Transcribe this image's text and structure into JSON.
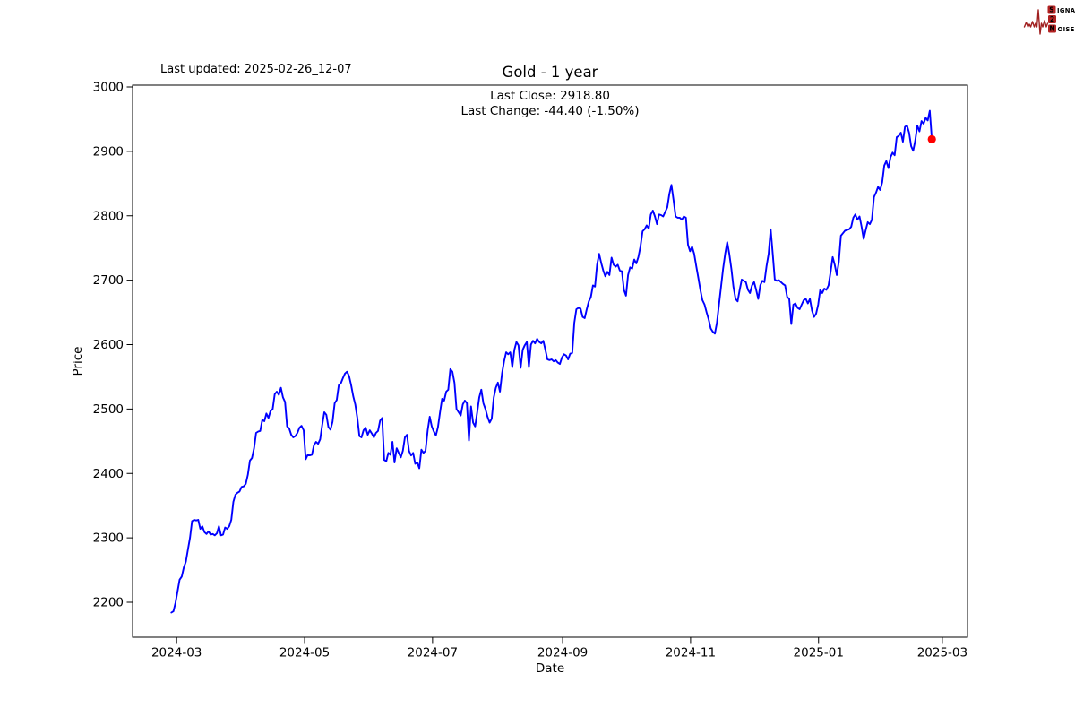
{
  "page": {
    "background": "#ffffff"
  },
  "header": {
    "last_updated": "Last updated: 2025-02-26_12-07",
    "title": "Gold - 1 year",
    "subtitle_line1": "Last Close: 2918.80",
    "subtitle_line2": "Last Change: -44.40 (-1.50%)"
  },
  "logo": {
    "s": "S",
    "ignal": "IGNAL",
    "two": "2",
    "n": "N",
    "oise": "OISE",
    "accent_color": "#b22222",
    "wave_color": "#a02020",
    "text_color": "#1a1a1a",
    "letter_color": "#ffffff"
  },
  "chart_data": {
    "type": "line",
    "title": "Gold - 1 year",
    "xlabel": "Date",
    "ylabel": "Price",
    "series_name": "Gold",
    "line_color": "#0000ff",
    "last_point_color": "#ff0000",
    "last_close": 2918.8,
    "last_change": -44.4,
    "last_change_pct": -1.5,
    "grid": false,
    "legend": "none",
    "ylim": [
      2146,
      3003
    ],
    "y_tick_values": [
      2200,
      2300,
      2400,
      2500,
      2600,
      2700,
      2800,
      2900,
      3000
    ],
    "x_tick_labels": [
      "2024-03",
      "2024-05",
      "2024-07",
      "2024-09",
      "2024-11",
      "2025-01",
      "2025-03"
    ],
    "xlim_dates": [
      "2024-02-09",
      "2025-03-13"
    ],
    "date_start": "2024-02-27",
    "date_end": "2025-02-25",
    "prices": [
      2184,
      2186,
      2199,
      2217,
      2235,
      2240,
      2254,
      2263,
      2282,
      2300,
      2326,
      2328,
      2327,
      2328,
      2314,
      2318,
      2309,
      2306,
      2310,
      2305,
      2306,
      2304,
      2307,
      2318,
      2304,
      2305,
      2316,
      2314,
      2318,
      2328,
      2356,
      2367,
      2370,
      2372,
      2379,
      2380,
      2384,
      2398,
      2420,
      2424,
      2439,
      2463,
      2465,
      2466,
      2483,
      2481,
      2493,
      2486,
      2497,
      2500,
      2523,
      2527,
      2522,
      2533,
      2518,
      2511,
      2473,
      2470,
      2460,
      2456,
      2458,
      2463,
      2471,
      2474,
      2467,
      2422,
      2429,
      2428,
      2429,
      2444,
      2449,
      2446,
      2453,
      2475,
      2495,
      2491,
      2472,
      2468,
      2480,
      2509,
      2514,
      2537,
      2540,
      2548,
      2555,
      2558,
      2551,
      2537,
      2520,
      2507,
      2486,
      2458,
      2456,
      2467,
      2471,
      2460,
      2467,
      2462,
      2456,
      2463,
      2466,
      2482,
      2486,
      2421,
      2419,
      2432,
      2429,
      2449,
      2417,
      2439,
      2432,
      2425,
      2435,
      2456,
      2460,
      2435,
      2428,
      2432,
      2415,
      2417,
      2408,
      2437,
      2432,
      2435,
      2467,
      2488,
      2473,
      2465,
      2459,
      2472,
      2495,
      2516,
      2513,
      2527,
      2530,
      2562,
      2558,
      2541,
      2500,
      2495,
      2490,
      2507,
      2513,
      2509,
      2451,
      2504,
      2479,
      2473,
      2495,
      2518,
      2530,
      2509,
      2500,
      2488,
      2479,
      2485,
      2518,
      2533,
      2541,
      2527,
      2555,
      2574,
      2588,
      2585,
      2588,
      2565,
      2592,
      2604,
      2599,
      2564,
      2592,
      2599,
      2604,
      2565,
      2600,
      2606,
      2602,
      2609,
      2604,
      2602,
      2606,
      2592,
      2577,
      2576,
      2577,
      2574,
      2576,
      2572,
      2570,
      2580,
      2585,
      2583,
      2577,
      2586,
      2587,
      2634,
      2655,
      2657,
      2656,
      2643,
      2641,
      2655,
      2667,
      2674,
      2692,
      2690,
      2724,
      2741,
      2727,
      2715,
      2706,
      2713,
      2708,
      2735,
      2724,
      2721,
      2724,
      2715,
      2714,
      2685,
      2676,
      2708,
      2720,
      2718,
      2732,
      2726,
      2736,
      2752,
      2776,
      2779,
      2785,
      2780,
      2802,
      2808,
      2799,
      2787,
      2802,
      2801,
      2799,
      2806,
      2813,
      2834,
      2848,
      2824,
      2799,
      2797,
      2797,
      2794,
      2799,
      2797,
      2755,
      2745,
      2752,
      2741,
      2722,
      2704,
      2685,
      2669,
      2662,
      2650,
      2639,
      2625,
      2620,
      2617,
      2634,
      2662,
      2690,
      2718,
      2741,
      2759,
      2741,
      2718,
      2690,
      2671,
      2667,
      2685,
      2701,
      2699,
      2697,
      2685,
      2680,
      2692,
      2697,
      2685,
      2671,
      2692,
      2699,
      2697,
      2722,
      2741,
      2779,
      2741,
      2701,
      2699,
      2700,
      2697,
      2694,
      2692,
      2674,
      2671,
      2632,
      2662,
      2664,
      2657,
      2655,
      2662,
      2669,
      2671,
      2664,
      2671,
      2653,
      2643,
      2648,
      2662,
      2685,
      2680,
      2687,
      2685,
      2692,
      2713,
      2736,
      2724,
      2708,
      2729,
      2769,
      2773,
      2777,
      2778,
      2779,
      2783,
      2797,
      2802,
      2794,
      2799,
      2783,
      2764,
      2778,
      2790,
      2787,
      2794,
      2829,
      2836,
      2845,
      2840,
      2852,
      2878,
      2885,
      2874,
      2891,
      2898,
      2894,
      2922,
      2924,
      2929,
      2915,
      2938,
      2940,
      2929,
      2908,
      2901,
      2917,
      2940,
      2931,
      2947,
      2943,
      2952,
      2948,
      2963,
      2918.8
    ]
  },
  "axis": {
    "total_days": 398,
    "x_ticks": [
      {
        "label": "2024-03",
        "day": 21
      },
      {
        "label": "2024-05",
        "day": 82
      },
      {
        "label": "2024-07",
        "day": 143
      },
      {
        "label": "2024-09",
        "day": 205
      },
      {
        "label": "2024-11",
        "day": 266
      },
      {
        "label": "2025-01",
        "day": 327
      },
      {
        "label": "2025-03",
        "day": 386
      }
    ],
    "line_start_day": 18.5,
    "line_end_day": 381
  }
}
